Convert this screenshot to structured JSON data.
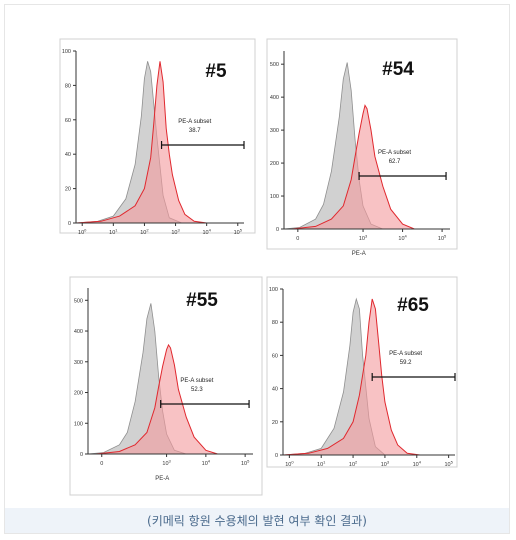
{
  "caption": "(키메릭 항원 수용체의 발현 여부 확인 결과)",
  "colors": {
    "control": "#c9c9c9",
    "sample": "#f39a9c",
    "sample_stroke": "#e0282e"
  },
  "chart_data": [
    {
      "type": "area",
      "title": "#5",
      "xlabel": "",
      "ylabel": "",
      "x_scale": "log",
      "yticks": [
        "0",
        "20",
        "40",
        "60",
        "80",
        "100"
      ],
      "ylim": [
        0,
        100
      ],
      "xticks": [
        "10^0",
        "10^1",
        "10^2",
        "10^3",
        "10^4",
        "10^5"
      ],
      "xlim_log10": [
        -0.2,
        5.2
      ],
      "gate": {
        "name": "PE-A subset",
        "value": "38.7",
        "from_log10": 2.55,
        "to_log10": 5.2
      },
      "series": [
        {
          "x": [
            -0.2,
            0.5,
            1.0,
            1.4,
            1.7,
            1.9,
            2.0,
            2.1,
            2.2,
            2.4,
            2.6,
            2.8,
            3.2
          ],
          "y": [
            0,
            1,
            4,
            14,
            34,
            62,
            84,
            94,
            88,
            50,
            16,
            3,
            0
          ]
        },
        {
          "x": [
            -0.2,
            0.6,
            1.2,
            1.7,
            2.0,
            2.2,
            2.3,
            2.4,
            2.5,
            2.6,
            2.7,
            2.8,
            2.9,
            3.1,
            3.3,
            3.6,
            4.0
          ],
          "y": [
            0,
            1,
            4,
            10,
            20,
            38,
            58,
            80,
            94,
            82,
            55,
            40,
            28,
            13,
            5,
            1,
            0
          ]
        }
      ]
    },
    {
      "type": "area",
      "title": "#54",
      "xlabel": "PE-A",
      "ylabel": "",
      "x_scale": "log",
      "yticks": [
        "0",
        "100",
        "200",
        "300",
        "400",
        "500"
      ],
      "ylim": [
        0,
        540
      ],
      "xticks": [
        "0",
        "10^3",
        "10^4",
        "10^5"
      ],
      "xlim_log10": [
        1.0,
        5.2
      ],
      "gate": {
        "name": "PE-A subset",
        "value": "62.7",
        "from_log10": 2.9,
        "to_log10": 5.1
      },
      "series": [
        {
          "x": [
            1.0,
            1.4,
            1.8,
            2.0,
            2.2,
            2.4,
            2.5,
            2.6,
            2.7,
            2.8,
            2.9,
            3.0,
            3.2,
            3.5
          ],
          "y": [
            0,
            5,
            30,
            75,
            175,
            340,
            455,
            505,
            420,
            270,
            150,
            70,
            15,
            0
          ]
        },
        {
          "x": [
            1.2,
            1.8,
            2.2,
            2.5,
            2.7,
            2.8,
            2.9,
            3.0,
            3.05,
            3.1,
            3.2,
            3.3,
            3.5,
            3.7,
            4.0,
            4.3
          ],
          "y": [
            0,
            8,
            30,
            70,
            150,
            220,
            290,
            350,
            375,
            365,
            300,
            220,
            130,
            60,
            15,
            0
          ]
        }
      ]
    },
    {
      "type": "area",
      "title": "#55",
      "xlabel": "PE-A",
      "ylabel": "",
      "x_scale": "log",
      "yticks": [
        "0",
        "100",
        "200",
        "300",
        "400",
        "500"
      ],
      "ylim": [
        0,
        540
      ],
      "xticks": [
        "0",
        "10^3",
        "10^4",
        "10^5"
      ],
      "xlim_log10": [
        1.0,
        5.2
      ],
      "gate": {
        "name": "PE-A subset",
        "value": "52.3",
        "from_log10": 2.85,
        "to_log10": 5.1
      },
      "series": [
        {
          "x": [
            1.0,
            1.4,
            1.8,
            2.0,
            2.2,
            2.4,
            2.5,
            2.6,
            2.7,
            2.8,
            2.9,
            3.0,
            3.2,
            3.5
          ],
          "y": [
            0,
            5,
            30,
            70,
            170,
            330,
            440,
            490,
            400,
            250,
            140,
            65,
            12,
            0
          ]
        },
        {
          "x": [
            1.2,
            1.8,
            2.2,
            2.5,
            2.7,
            2.8,
            2.9,
            3.0,
            3.05,
            3.1,
            3.2,
            3.3,
            3.5,
            3.7,
            4.0,
            4.3
          ],
          "y": [
            0,
            8,
            30,
            70,
            150,
            220,
            285,
            340,
            355,
            345,
            290,
            210,
            120,
            55,
            12,
            0
          ]
        }
      ]
    },
    {
      "type": "area",
      "title": "#65",
      "xlabel": "",
      "ylabel": "",
      "x_scale": "log",
      "yticks": [
        "0",
        "20",
        "40",
        "60",
        "80",
        "100"
      ],
      "ylim": [
        0,
        100
      ],
      "xticks": [
        "10^0",
        "10^1",
        "10^2",
        "10^3",
        "10^4",
        "10^5"
      ],
      "xlim_log10": [
        -0.2,
        5.2
      ],
      "gate": {
        "name": "PE-A subset",
        "value": "59.2",
        "from_log10": 2.6,
        "to_log10": 5.2
      },
      "series": [
        {
          "x": [
            -0.2,
            0.5,
            1.0,
            1.4,
            1.7,
            1.9,
            2.0,
            2.1,
            2.2,
            2.3,
            2.5,
            2.7,
            3.0
          ],
          "y": [
            0,
            1,
            4,
            16,
            38,
            66,
            86,
            94,
            88,
            60,
            22,
            5,
            0
          ]
        },
        {
          "x": [
            -0.2,
            0.6,
            1.2,
            1.7,
            2.0,
            2.2,
            2.4,
            2.5,
            2.6,
            2.7,
            2.8,
            2.9,
            3.0,
            3.2,
            3.4,
            3.7,
            4.1
          ],
          "y": [
            0,
            1,
            4,
            10,
            20,
            36,
            60,
            80,
            94,
            88,
            68,
            48,
            32,
            15,
            6,
            1,
            0
          ]
        }
      ]
    }
  ]
}
